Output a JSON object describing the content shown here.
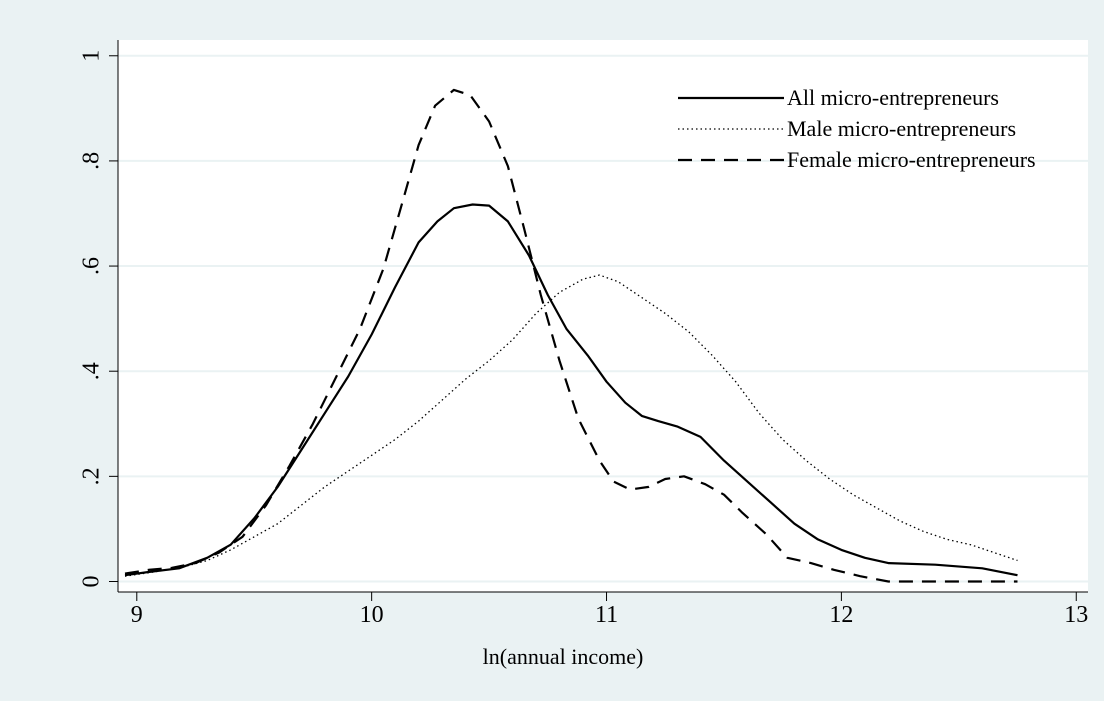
{
  "chart_data": {
    "type": "line",
    "title": "",
    "xlabel": "ln(annual income)",
    "ylabel": "",
    "xlim": [
      8.92,
      13.05
    ],
    "ylim": [
      -0.02,
      1.03
    ],
    "x_ticks": [
      9,
      10,
      11,
      12,
      13
    ],
    "x_tick_labels": [
      "9",
      "10",
      "11",
      "12",
      "13"
    ],
    "y_ticks": [
      0,
      0.2,
      0.4,
      0.6,
      0.8,
      1
    ],
    "y_tick_labels": [
      "0",
      ".2",
      ".4",
      ".6",
      ".8",
      "1"
    ],
    "grid": "horizontal",
    "legend_position": "top-right",
    "colors": {
      "background": "#eaf2f3",
      "plot_area": "#ffffff",
      "grid": "#eaf2f3",
      "line": "#000000"
    },
    "series": [
      {
        "name": "All micro-entrepreneurs",
        "style": "solid",
        "points": [
          [
            8.95,
            0.012
          ],
          [
            9.05,
            0.018
          ],
          [
            9.18,
            0.025
          ],
          [
            9.3,
            0.045
          ],
          [
            9.4,
            0.07
          ],
          [
            9.5,
            0.12
          ],
          [
            9.6,
            0.18
          ],
          [
            9.7,
            0.25
          ],
          [
            9.8,
            0.32
          ],
          [
            9.9,
            0.39
          ],
          [
            10.0,
            0.47
          ],
          [
            10.1,
            0.56
          ],
          [
            10.2,
            0.645
          ],
          [
            10.28,
            0.685
          ],
          [
            10.35,
            0.71
          ],
          [
            10.43,
            0.717
          ],
          [
            10.5,
            0.715
          ],
          [
            10.58,
            0.685
          ],
          [
            10.67,
            0.62
          ],
          [
            10.75,
            0.545
          ],
          [
            10.83,
            0.48
          ],
          [
            10.92,
            0.43
          ],
          [
            11.0,
            0.38
          ],
          [
            11.08,
            0.34
          ],
          [
            11.15,
            0.315
          ],
          [
            11.22,
            0.305
          ],
          [
            11.3,
            0.295
          ],
          [
            11.4,
            0.275
          ],
          [
            11.5,
            0.23
          ],
          [
            11.6,
            0.19
          ],
          [
            11.7,
            0.15
          ],
          [
            11.8,
            0.11
          ],
          [
            11.9,
            0.08
          ],
          [
            12.0,
            0.06
          ],
          [
            12.1,
            0.045
          ],
          [
            12.2,
            0.035
          ],
          [
            12.4,
            0.032
          ],
          [
            12.6,
            0.025
          ],
          [
            12.75,
            0.012
          ]
        ]
      },
      {
        "name": "Male micro-entrepreneurs",
        "style": "dotted",
        "points": [
          [
            8.95,
            0.01
          ],
          [
            9.1,
            0.02
          ],
          [
            9.2,
            0.028
          ],
          [
            9.3,
            0.04
          ],
          [
            9.4,
            0.06
          ],
          [
            9.5,
            0.085
          ],
          [
            9.6,
            0.11
          ],
          [
            9.7,
            0.145
          ],
          [
            9.8,
            0.18
          ],
          [
            9.9,
            0.21
          ],
          [
            10.0,
            0.24
          ],
          [
            10.1,
            0.27
          ],
          [
            10.2,
            0.305
          ],
          [
            10.3,
            0.345
          ],
          [
            10.4,
            0.385
          ],
          [
            10.5,
            0.42
          ],
          [
            10.6,
            0.46
          ],
          [
            10.7,
            0.51
          ],
          [
            10.8,
            0.55
          ],
          [
            10.9,
            0.575
          ],
          [
            10.97,
            0.583
          ],
          [
            11.05,
            0.57
          ],
          [
            11.15,
            0.54
          ],
          [
            11.25,
            0.51
          ],
          [
            11.35,
            0.475
          ],
          [
            11.45,
            0.43
          ],
          [
            11.55,
            0.38
          ],
          [
            11.65,
            0.32
          ],
          [
            11.75,
            0.27
          ],
          [
            11.85,
            0.23
          ],
          [
            11.95,
            0.195
          ],
          [
            12.05,
            0.165
          ],
          [
            12.15,
            0.14
          ],
          [
            12.25,
            0.115
          ],
          [
            12.35,
            0.095
          ],
          [
            12.45,
            0.08
          ],
          [
            12.55,
            0.07
          ],
          [
            12.65,
            0.055
          ],
          [
            12.75,
            0.04
          ]
        ]
      },
      {
        "name": "Female micro-entrepreneurs",
        "style": "dashed",
        "points": [
          [
            8.95,
            0.015
          ],
          [
            9.05,
            0.022
          ],
          [
            9.15,
            0.026
          ],
          [
            9.25,
            0.035
          ],
          [
            9.35,
            0.055
          ],
          [
            9.45,
            0.085
          ],
          [
            9.55,
            0.145
          ],
          [
            9.65,
            0.22
          ],
          [
            9.75,
            0.3
          ],
          [
            9.85,
            0.39
          ],
          [
            9.95,
            0.48
          ],
          [
            10.05,
            0.595
          ],
          [
            10.13,
            0.72
          ],
          [
            10.2,
            0.83
          ],
          [
            10.27,
            0.905
          ],
          [
            10.35,
            0.935
          ],
          [
            10.42,
            0.925
          ],
          [
            10.5,
            0.875
          ],
          [
            10.58,
            0.79
          ],
          [
            10.65,
            0.67
          ],
          [
            10.72,
            0.545
          ],
          [
            10.8,
            0.42
          ],
          [
            10.88,
            0.31
          ],
          [
            10.97,
            0.23
          ],
          [
            11.03,
            0.19
          ],
          [
            11.1,
            0.175
          ],
          [
            11.18,
            0.18
          ],
          [
            11.25,
            0.195
          ],
          [
            11.33,
            0.2
          ],
          [
            11.42,
            0.185
          ],
          [
            11.5,
            0.165
          ],
          [
            11.58,
            0.13
          ],
          [
            11.68,
            0.09
          ],
          [
            11.77,
            0.045
          ],
          [
            11.87,
            0.035
          ],
          [
            11.97,
            0.022
          ],
          [
            12.08,
            0.01
          ],
          [
            12.2,
            0.0
          ],
          [
            12.4,
            0.0
          ],
          [
            12.6,
            0.0
          ],
          [
            12.75,
            0.0
          ]
        ]
      }
    ]
  }
}
